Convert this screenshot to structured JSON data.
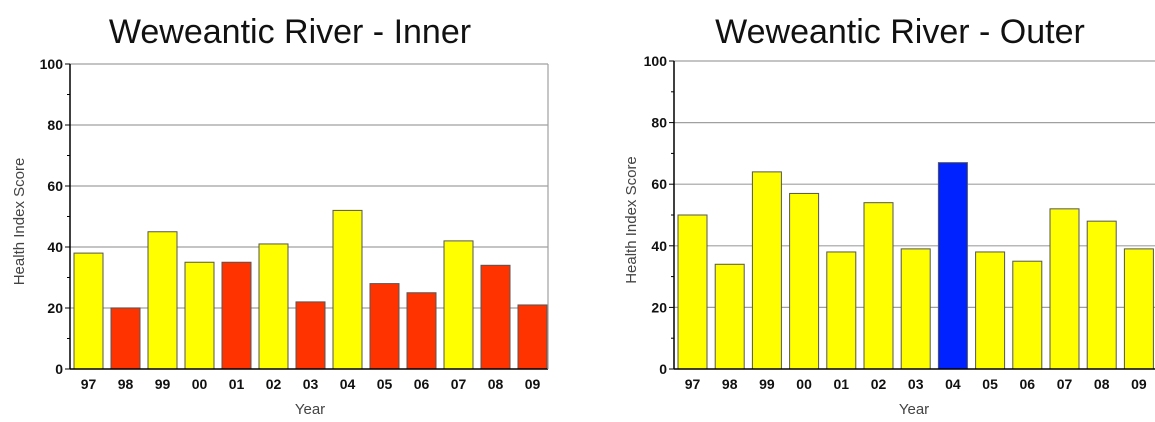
{
  "chart_data": [
    {
      "type": "bar",
      "title": "Weweantic River - Inner",
      "xlabel": "Year",
      "ylabel": "Health Index Score",
      "ylim": [
        0,
        100
      ],
      "yticks": [
        0,
        20,
        40,
        60,
        80,
        100
      ],
      "grid": true,
      "categories": [
        "97",
        "98",
        "99",
        "00",
        "01",
        "02",
        "03",
        "04",
        "05",
        "06",
        "07",
        "08",
        "09"
      ],
      "values": [
        38,
        20,
        45,
        35,
        35,
        41,
        22,
        52,
        28,
        25,
        42,
        34,
        21
      ],
      "colors": [
        "#ffff00",
        "#ff3300",
        "#ffff00",
        "#ffff00",
        "#ff3300",
        "#ffff00",
        "#ff3300",
        "#ffff00",
        "#ff3300",
        "#ff3300",
        "#ffff00",
        "#ff3300",
        "#ff3300"
      ]
    },
    {
      "type": "bar",
      "title": "Weweantic River - Outer",
      "xlabel": "Year",
      "ylabel": "Health Index Score",
      "ylim": [
        0,
        100
      ],
      "yticks": [
        0,
        20,
        40,
        60,
        80,
        100
      ],
      "grid": true,
      "categories": [
        "97",
        "98",
        "99",
        "00",
        "01",
        "02",
        "03",
        "04",
        "05",
        "06",
        "07",
        "08",
        "09"
      ],
      "values": [
        50,
        34,
        64,
        57,
        38,
        54,
        39,
        67,
        38,
        35,
        52,
        48,
        39
      ],
      "colors": [
        "#ffff00",
        "#ffff00",
        "#ffff00",
        "#ffff00",
        "#ffff00",
        "#ffff00",
        "#ffff00",
        "#0022ff",
        "#ffff00",
        "#ffff00",
        "#ffff00",
        "#ffff00",
        "#ffff00"
      ]
    }
  ]
}
